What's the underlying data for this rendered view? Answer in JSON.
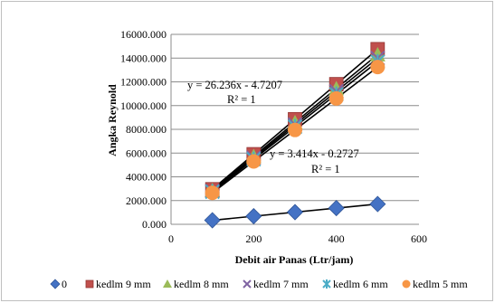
{
  "chart_data": {
    "type": "scatter",
    "title": "",
    "xlabel": "Debit air Panas (Ltr/jam)",
    "ylabel": "Angka Reynold",
    "xlim": [
      0,
      600
    ],
    "ylim": [
      0,
      16000
    ],
    "x_ticks": [
      "0",
      "200",
      "400",
      "600"
    ],
    "y_ticks": [
      "0.000",
      "2000.000",
      "4000.000",
      "6000.000",
      "8000.000",
      "10000.000",
      "12000.000",
      "14000.000",
      "16000.000"
    ],
    "grid": "horizontal",
    "legend_position": "bottom",
    "x": [
      100,
      200,
      300,
      400,
      500
    ],
    "series": [
      {
        "name": "0",
        "marker": "diamond",
        "color": "#4472c4",
        "values": [
          341,
          683,
          1024,
          1366,
          1707
        ]
      },
      {
        "name": "kedlm 9 mm",
        "marker": "square",
        "color": "#c0504d",
        "values": [
          2950,
          5900,
          8850,
          11800,
          14750
        ]
      },
      {
        "name": "kedlm 8 mm",
        "marker": "triangle",
        "color": "#9bbb59",
        "values": [
          2860,
          5720,
          8580,
          11440,
          14300
        ]
      },
      {
        "name": "kedlm 7 mm",
        "marker": "x",
        "color": "#8064a2",
        "values": [
          2800,
          5600,
          8400,
          11200,
          14000
        ]
      },
      {
        "name": "kedlm 6 mm",
        "marker": "star",
        "color": "#4bacc6",
        "values": [
          2740,
          5480,
          8220,
          10960,
          13700
        ]
      },
      {
        "name": "kedlm 5 mm",
        "marker": "circle",
        "color": "#f79646",
        "values": [
          2650,
          5300,
          7950,
          10600,
          13250
        ]
      }
    ],
    "trendline_color": "#000000",
    "annotations": [
      {
        "equation": "y = 26.236x - 4.7207",
        "r2": "R² = 1"
      },
      {
        "equation": "y = 3.414x - 0.2727",
        "r2": "R² = 1"
      }
    ]
  }
}
